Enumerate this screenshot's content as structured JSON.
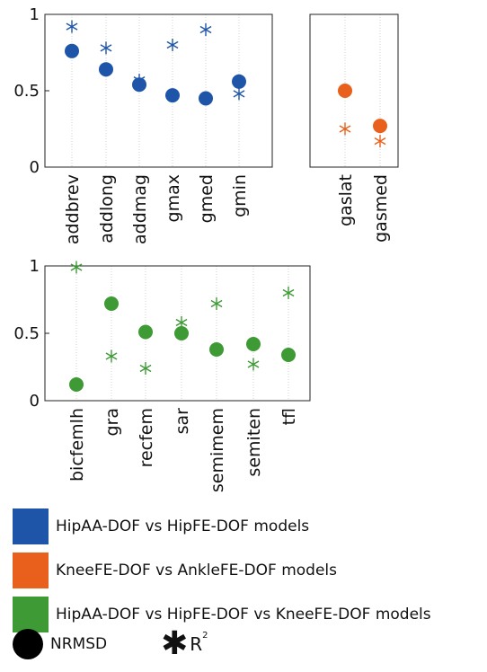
{
  "colors": {
    "hip_aa": "#1f55a8",
    "knee": "#e8601c",
    "hip_knee": "#3e9a35"
  },
  "chart_data": [
    {
      "type": "scatter",
      "yticks": [
        "1",
        "0.5",
        "0"
      ],
      "ylim": [
        0,
        1
      ],
      "grid": "vertical dotted",
      "categories": [
        "addbrev",
        "addlong",
        "addmag",
        "gmax",
        "gmed",
        "gmin"
      ],
      "series": [
        {
          "name": "NRMSD",
          "marker": "circle",
          "values": [
            0.76,
            0.64,
            0.54,
            0.47,
            0.45,
            0.56
          ]
        },
        {
          "name": "R²",
          "marker": "asterisk",
          "values": [
            0.92,
            0.78,
            0.57,
            0.8,
            0.9,
            0.48
          ]
        }
      ]
    },
    {
      "type": "scatter",
      "ylim": [
        0,
        1
      ],
      "grid": "vertical dotted",
      "categories": [
        "gaslat",
        "gasmed"
      ],
      "series": [
        {
          "name": "NRMSD",
          "marker": "circle",
          "values": [
            0.5,
            0.27
          ]
        },
        {
          "name": "R²",
          "marker": "asterisk",
          "values": [
            0.25,
            0.17
          ]
        }
      ]
    },
    {
      "type": "scatter",
      "yticks": [
        "1",
        "0.5",
        "0"
      ],
      "ylim": [
        0,
        1
      ],
      "grid": "vertical dotted",
      "categories": [
        "bicfemlh",
        "gra",
        "recfem",
        "sar",
        "semimem",
        "semiten",
        "tfl"
      ],
      "series": [
        {
          "name": "NRMSD",
          "marker": "circle",
          "values": [
            0.12,
            0.72,
            0.51,
            0.5,
            0.38,
            0.42,
            0.34
          ]
        },
        {
          "name": "R²",
          "marker": "asterisk",
          "values": [
            0.99,
            0.33,
            0.24,
            0.58,
            0.72,
            0.27,
            0.8
          ]
        }
      ]
    }
  ],
  "legend": {
    "items": [
      {
        "label": "HipAA-DOF vs HipFE-DOF models",
        "color": "#1f55a8"
      },
      {
        "label": "KneeFE-DOF vs AnkleFE-DOF models",
        "color": "#e8601c"
      },
      {
        "label": "HipAA-DOF vs HipFE-DOF vs KneeFE-DOF models",
        "color": "#3e9a35"
      }
    ],
    "nrmsd_label": "NRMSD",
    "r2_label": "R",
    "r2_sup": "2"
  }
}
